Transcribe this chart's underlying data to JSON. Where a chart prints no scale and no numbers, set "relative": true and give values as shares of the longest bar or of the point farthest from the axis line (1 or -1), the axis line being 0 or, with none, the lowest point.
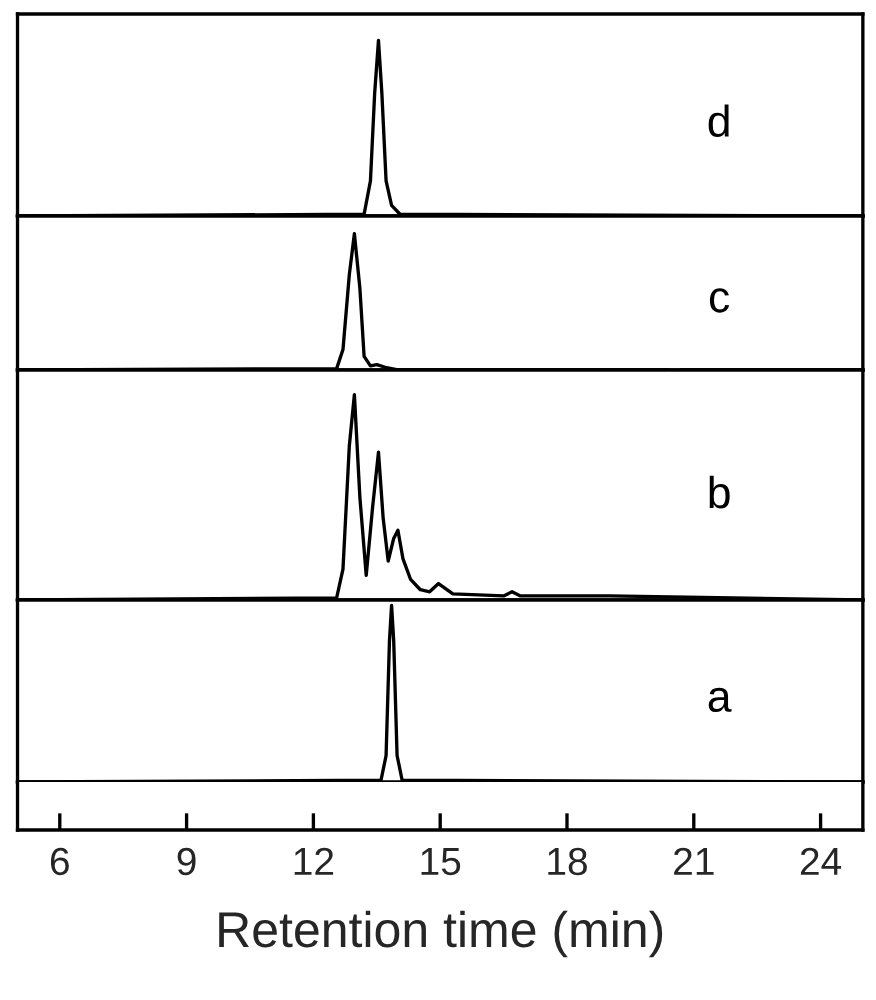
{
  "chart_data": [
    {
      "type": "line",
      "relative": true,
      "xlim": [
        5,
        25
      ],
      "tick_labels": false,
      "grid": false,
      "series": [
        {
          "name": "d",
          "color": "#000000",
          "x": [
            5,
            13.2,
            13.35,
            13.45,
            13.54,
            13.62,
            13.72,
            13.85,
            14.05,
            25
          ],
          "values": [
            0,
            0.01,
            0.2,
            0.7,
            1,
            0.7,
            0.2,
            0.06,
            0.01,
            0
          ]
        }
      ]
    },
    {
      "type": "line",
      "relative": true,
      "xlim": [
        5,
        25
      ],
      "tick_labels": false,
      "grid": false,
      "series": [
        {
          "name": "c",
          "color": "#000000",
          "x": [
            5,
            12.55,
            12.7,
            12.85,
            12.97,
            13.1,
            13.2,
            13.35,
            13.5,
            13.7,
            14,
            20.4,
            20.55,
            20.7,
            25
          ],
          "values": [
            0,
            0.01,
            0.15,
            0.7,
            1,
            0.6,
            0.1,
            0.03,
            0.04,
            0.02,
            0,
            0,
            -0.03,
            0,
            0
          ]
        }
      ]
    },
    {
      "type": "line",
      "relative": true,
      "xlim": [
        5,
        25
      ],
      "tick_labels": false,
      "grid": false,
      "series": [
        {
          "name": "b",
          "color": "#000000",
          "x": [
            5,
            12.55,
            12.7,
            12.85,
            12.97,
            13.1,
            13.25,
            13.4,
            13.54,
            13.65,
            13.77,
            13.9,
            14.0,
            14.12,
            14.3,
            14.53,
            14.75,
            14.96,
            15.3,
            16.5,
            16.7,
            16.9,
            19,
            25
          ],
          "values": [
            0,
            0.01,
            0.15,
            0.75,
            1,
            0.5,
            0.12,
            0.45,
            0.72,
            0.4,
            0.19,
            0.3,
            0.34,
            0.2,
            0.1,
            0.05,
            0.04,
            0.08,
            0.03,
            0.02,
            0.04,
            0.02,
            0.02,
            0
          ]
        }
      ]
    },
    {
      "type": "line",
      "relative": true,
      "xlim": [
        5,
        25
      ],
      "tick_labels": "x",
      "grid": false,
      "xlabel": "Retention time (min)",
      "xticks": [
        6,
        9,
        12,
        15,
        18,
        21,
        24
      ],
      "series": [
        {
          "name": "a",
          "color": "#000000",
          "x": [
            5,
            13.6,
            13.72,
            13.8,
            13.85,
            13.9,
            13.98,
            14.1,
            25
          ],
          "values": [
            0,
            0.01,
            0.15,
            0.8,
            1,
            0.8,
            0.15,
            0.01,
            0
          ]
        }
      ]
    }
  ]
}
